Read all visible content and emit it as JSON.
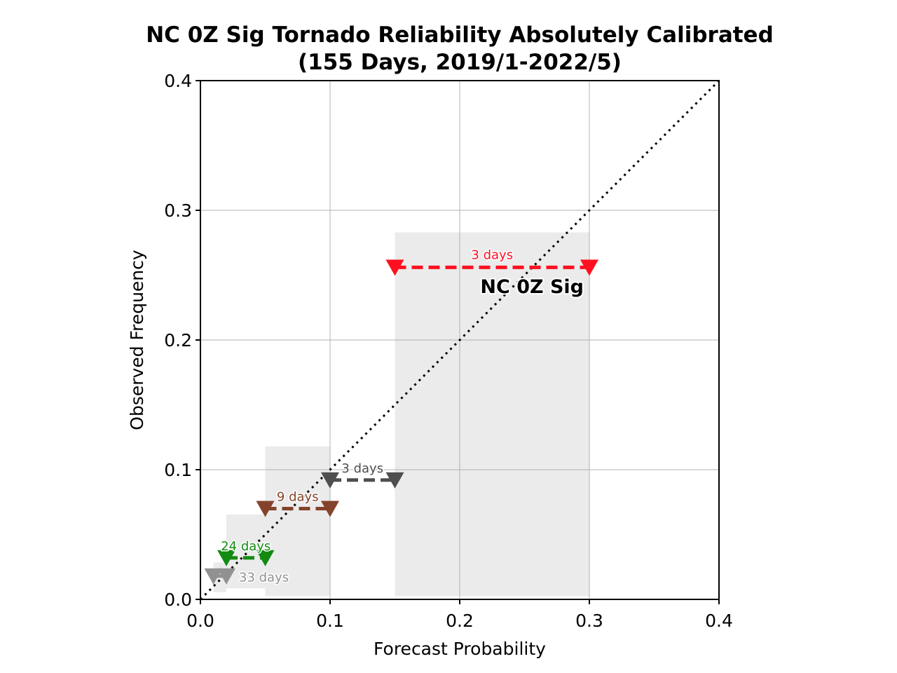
{
  "chart_data": {
    "type": "scatter",
    "title_line1": "NC 0Z Sig Tornado Reliability Absolutely Calibrated",
    "title_line2": "(155 Days, 2019/1-2022/5)",
    "xlabel": "Forecast Probability",
    "ylabel": "Observed Frequency",
    "xlim": [
      0.0,
      0.4
    ],
    "ylim": [
      0.0,
      0.4
    ],
    "xticks": [
      "0.0",
      "0.1",
      "0.2",
      "0.3",
      "0.4"
    ],
    "yticks": [
      "0.0",
      "0.1",
      "0.2",
      "0.3",
      "0.4"
    ],
    "grid": true,
    "diagonal": "perfect-reliability dotted line",
    "bins": [
      {
        "x_range": [
          0.01,
          0.02
        ],
        "y": 0.018,
        "days_label": "33 days",
        "color": "#919191",
        "band": [
          0.0055,
          0.0285
        ]
      },
      {
        "x_range": [
          0.02,
          0.05
        ],
        "y": 0.032,
        "days_label": "24 days",
        "color": "#138b12",
        "band": [
          0.0085,
          0.0655
        ]
      },
      {
        "x_range": [
          0.05,
          0.1
        ],
        "y": 0.07,
        "days_label": "9 days",
        "color": "#84432a",
        "band": [
          0.0025,
          0.118
        ]
      },
      {
        "x_range": [
          0.1,
          0.15
        ],
        "y": 0.092,
        "days_label": "3 days",
        "color": "#4e4e4e",
        "band": [
          0.0025,
          0.0025
        ]
      },
      {
        "x_range": [
          0.15,
          0.3
        ],
        "y": 0.256,
        "days_label": "3 days",
        "color": "#ff1020",
        "band": [
          0.0025,
          0.283
        ]
      }
    ],
    "series_label": "NC 0Z Sig"
  }
}
